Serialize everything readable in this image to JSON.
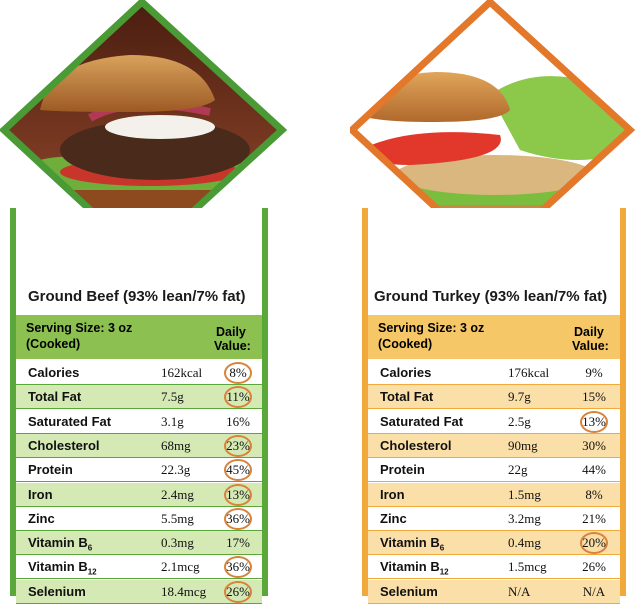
{
  "beef": {
    "title": "Ground Beef (93% lean/7% fat)",
    "serving_line1": "Serving Size: 3 oz",
    "serving_line2": "(Cooked)",
    "dv_line1": "Daily",
    "dv_line2": "Value:",
    "accent": "#5aa83a",
    "accent_light": "#d5e9b4",
    "header_bg": "#8cc152",
    "rows": [
      {
        "name": "Calories",
        "sub": "",
        "amount": "162kcal",
        "dv": "8%",
        "circled": true
      },
      {
        "name": "Total Fat",
        "sub": "",
        "amount": "7.5g",
        "dv": "11%",
        "circled": true
      },
      {
        "name": "Saturated Fat",
        "sub": "",
        "amount": "3.1g",
        "dv": "16%",
        "circled": false
      },
      {
        "name": "Cholesterol",
        "sub": "",
        "amount": "68mg",
        "dv": "23%",
        "circled": true
      },
      {
        "name": "Protein",
        "sub": "",
        "amount": "22.3g",
        "dv": "45%",
        "circled": true
      },
      {
        "name": "Iron",
        "sub": "",
        "amount": "2.4mg",
        "dv": "13%",
        "circled": true
      },
      {
        "name": "Zinc",
        "sub": "",
        "amount": "5.5mg",
        "dv": "36%",
        "circled": true
      },
      {
        "name": "Vitamin B",
        "sub": "6",
        "amount": "0.3mg",
        "dv": "17%",
        "circled": false
      },
      {
        "name": "Vitamin B",
        "sub": "12",
        "amount": "2.1mcg",
        "dv": "36%",
        "circled": true
      },
      {
        "name": "Selenium",
        "sub": "",
        "amount": "18.4mcg",
        "dv": "26%",
        "circled": true
      }
    ]
  },
  "turkey": {
    "title": "Ground Turkey (93% lean/7% fat)",
    "serving_line1": "Serving Size: 3 oz",
    "serving_line2": "(Cooked)",
    "dv_line1": "Daily",
    "dv_line2": "Value:",
    "accent": "#f2a93b",
    "accent_light": "#fbdfa8",
    "header_bg": "#f6c766",
    "rows": [
      {
        "name": "Calories",
        "sub": "",
        "amount": "176kcal",
        "dv": "9%",
        "circled": false
      },
      {
        "name": "Total Fat",
        "sub": "",
        "amount": "9.7g",
        "dv": "15%",
        "circled": false
      },
      {
        "name": "Saturated Fat",
        "sub": "",
        "amount": "2.5g",
        "dv": "13%",
        "circled": true
      },
      {
        "name": "Cholesterol",
        "sub": "",
        "amount": "90mg",
        "dv": "30%",
        "circled": false
      },
      {
        "name": "Protein",
        "sub": "",
        "amount": "22g",
        "dv": "44%",
        "circled": false
      },
      {
        "name": "Iron",
        "sub": "",
        "amount": "1.5mg",
        "dv": "8%",
        "circled": false
      },
      {
        "name": "Zinc",
        "sub": "",
        "amount": "3.2mg",
        "dv": "21%",
        "circled": false
      },
      {
        "name": "Vitamin B",
        "sub": "6",
        "amount": "0.4mg",
        "dv": "20%",
        "circled": true
      },
      {
        "name": "Vitamin B",
        "sub": "12",
        "amount": "1.5mcg",
        "dv": "26%",
        "circled": false
      },
      {
        "name": "Selenium",
        "sub": "",
        "amount": "N/A",
        "dv": "N/A",
        "circled": false
      }
    ]
  },
  "photos": {
    "beef_icon": "beef-burger-photo",
    "turkey_icon": "turkey-burger-photo",
    "beef_border": "#4a9a35",
    "turkey_border": "#e3772a"
  }
}
